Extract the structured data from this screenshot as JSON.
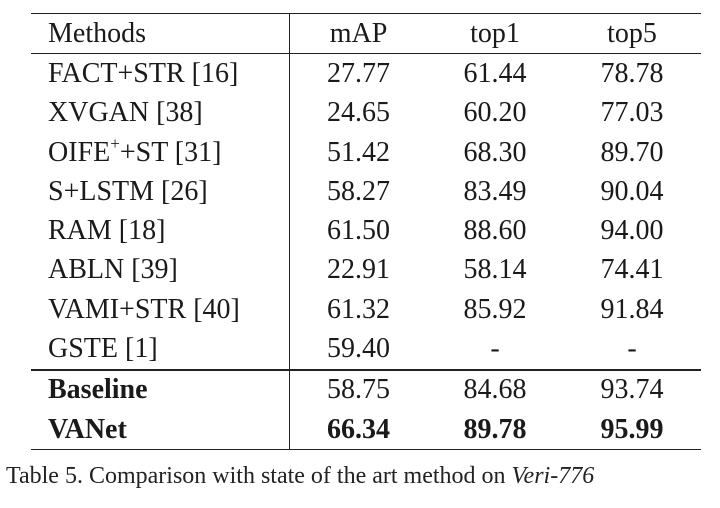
{
  "table": {
    "headers": [
      "Methods",
      "mAP",
      "top1",
      "top5"
    ],
    "rows": [
      {
        "method": "FACT+STR [16]",
        "map": "27.77",
        "top1": "61.44",
        "top5": "78.78"
      },
      {
        "method": "XVGAN [38]",
        "map": "24.65",
        "top1": "60.20",
        "top5": "77.03"
      },
      {
        "method_pre": "OIFE",
        "method_sup": "+",
        "method_post": "+ST [31]",
        "map": "51.42",
        "top1": "68.30",
        "top5": "89.70"
      },
      {
        "method": "S+LSTM [26]",
        "map": "58.27",
        "top1": "83.49",
        "top5": "90.04"
      },
      {
        "method": "RAM [18]",
        "map": "61.50",
        "top1": "88.60",
        "top5": "94.00"
      },
      {
        "method": "ABLN [39]",
        "map": "22.91",
        "top1": "58.14",
        "top5": "74.41"
      },
      {
        "method": "VAMI+STR [40]",
        "map": "61.32",
        "top1": "85.92",
        "top5": "91.84"
      },
      {
        "method": "GSTE [1]",
        "map": "59.40",
        "top1": "-",
        "top5": "-"
      },
      {
        "method": "Baseline",
        "map": "58.75",
        "top1": "84.68",
        "top5": "93.74"
      },
      {
        "method": "VANet",
        "map": "66.34",
        "top1": "89.78",
        "top5": "95.99"
      }
    ]
  },
  "caption": {
    "text": "Table 5. Comparison with state of the art method on ",
    "dataset": "Veri-776"
  }
}
